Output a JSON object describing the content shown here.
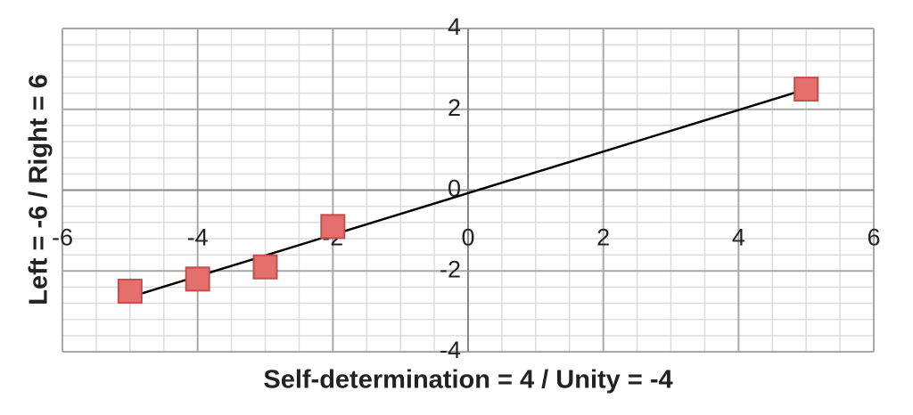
{
  "chart_data": {
    "type": "scatter",
    "x_label": "Self-determination = 4 / Unity = -4",
    "y_label": "Left = -6 / Right = 6",
    "series": [
      {
        "color": "#e46f6c",
        "x": [
          -5,
          -4,
          -3,
          -2,
          5
        ],
        "values": [
          -2.5,
          -2.2,
          -1.9,
          -0.9,
          2.5
        ]
      }
    ],
    "trendline": "linear",
    "xlim": [
      -6,
      6
    ],
    "xticks": [
      -6,
      -4,
      -2,
      0,
      2,
      4,
      6
    ],
    "ylim": [
      -4,
      4
    ],
    "yticks": [
      -4,
      -2,
      0,
      2,
      4
    ],
    "grid": true
  }
}
